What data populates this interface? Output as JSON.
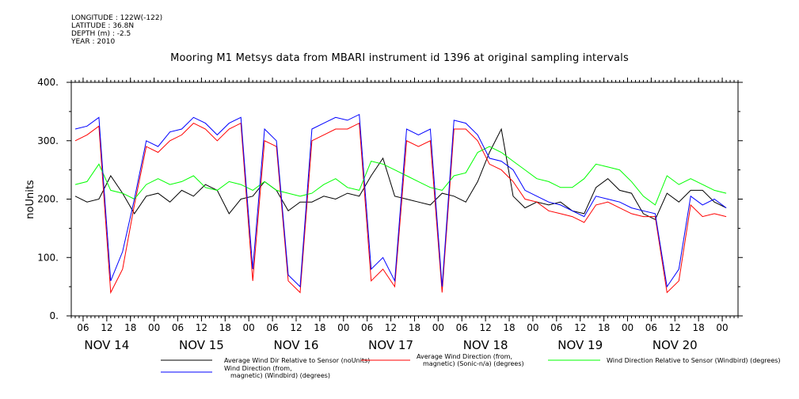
{
  "header": {
    "longitude": "LONGITUDE : 122W(-122)",
    "latitude": "LATITUDE : 36.8N",
    "depth": "DEPTH (m) : -2.5",
    "year": "YEAR : 2010"
  },
  "chart_data": {
    "type": "line",
    "title": "Mooring M1 Metsys data from MBARI instrument id 1396 at original sampling intervals",
    "ylabel": "noUnits",
    "xlabel": "",
    "ylim": [
      0,
      400
    ],
    "yticks": [
      0,
      100,
      200,
      300,
      400
    ],
    "ytick_labels": [
      "0.",
      "100.",
      "200.",
      "300.",
      "400."
    ],
    "xlim_hours": [
      -21,
      148
    ],
    "hour_ticks": [
      {
        "h": -18,
        "label": "06"
      },
      {
        "h": -12,
        "label": "12"
      },
      {
        "h": -6,
        "label": "18"
      },
      {
        "h": 0,
        "label": "00"
      },
      {
        "h": 6,
        "label": "06"
      },
      {
        "h": 12,
        "label": "12"
      },
      {
        "h": 18,
        "label": "18"
      },
      {
        "h": 24,
        "label": "00"
      },
      {
        "h": 30,
        "label": "06"
      },
      {
        "h": 36,
        "label": "12"
      },
      {
        "h": 42,
        "label": "18"
      },
      {
        "h": 48,
        "label": "00"
      },
      {
        "h": 54,
        "label": "06"
      },
      {
        "h": 60,
        "label": "12"
      },
      {
        "h": 66,
        "label": "18"
      },
      {
        "h": 72,
        "label": "00"
      },
      {
        "h": 78,
        "label": "06"
      },
      {
        "h": 84,
        "label": "12"
      },
      {
        "h": 90,
        "label": "18"
      },
      {
        "h": 96,
        "label": "00"
      },
      {
        "h": 102,
        "label": "06"
      },
      {
        "h": 108,
        "label": "12"
      },
      {
        "h": 114,
        "label": "18"
      },
      {
        "h": 120,
        "label": "00"
      },
      {
        "h": 126,
        "label": "06"
      },
      {
        "h": 132,
        "label": "12"
      },
      {
        "h": 138,
        "label": "18"
      },
      {
        "h": 144,
        "label": "00"
      }
    ],
    "date_labels": [
      {
        "h": -12,
        "label": "NOV 14"
      },
      {
        "h": 12,
        "label": "NOV 15"
      },
      {
        "h": 36,
        "label": "NOV 16"
      },
      {
        "h": 60,
        "label": "NOV 17"
      },
      {
        "h": 84,
        "label": "NOV 18"
      },
      {
        "h": 108,
        "label": "NOV 19"
      },
      {
        "h": 132,
        "label": "NOV 20"
      }
    ],
    "grid": false,
    "legend_position": "bottom",
    "series": [
      {
        "name": "Average Wind Dir Relative to Sensor (noUnits)",
        "color": "#000000",
        "x": [
          -20,
          -17,
          -14,
          -11,
          -8,
          -5,
          -2,
          1,
          4,
          7,
          10,
          13,
          16,
          19,
          22,
          25,
          28,
          31,
          34,
          37,
          40,
          43,
          46,
          49,
          52,
          55,
          58,
          61,
          64,
          67,
          70,
          73,
          76,
          79,
          82,
          85,
          88,
          91,
          94,
          97,
          100,
          103,
          106,
          109,
          112,
          115,
          118,
          121,
          124,
          127,
          130,
          133,
          136,
          139,
          142,
          145
        ],
        "values": [
          205,
          195,
          200,
          240,
          210,
          175,
          205,
          210,
          195,
          215,
          205,
          225,
          215,
          175,
          200,
          205,
          230,
          215,
          180,
          195,
          195,
          205,
          200,
          210,
          205,
          240,
          270,
          205,
          200,
          195,
          190,
          210,
          205,
          195,
          230,
          280,
          320,
          205,
          185,
          195,
          190,
          195,
          180,
          175,
          220,
          235,
          215,
          210,
          175,
          165,
          210,
          195,
          215,
          215,
          195,
          185
        ]
      },
      {
        "name": "Average Wind Direction (from, magnetic) (Sonic-n/a) (degrees)",
        "color": "#ff0000",
        "x": [
          -20,
          -17,
          -14,
          -11,
          -8,
          -5,
          -2,
          1,
          4,
          7,
          10,
          13,
          16,
          19,
          22,
          25,
          28,
          31,
          34,
          37,
          40,
          43,
          46,
          49,
          52,
          55,
          58,
          61,
          64,
          67,
          70,
          73,
          76,
          79,
          82,
          85,
          88,
          91,
          94,
          97,
          100,
          103,
          106,
          109,
          112,
          115,
          118,
          121,
          124,
          127,
          130,
          133,
          136,
          139,
          142,
          145
        ],
        "values": [
          300,
          310,
          325,
          40,
          80,
          190,
          290,
          280,
          300,
          310,
          330,
          320,
          300,
          320,
          330,
          60,
          300,
          290,
          60,
          40,
          300,
          310,
          320,
          320,
          330,
          60,
          80,
          50,
          300,
          290,
          300,
          40,
          320,
          320,
          300,
          260,
          250,
          230,
          200,
          195,
          180,
          175,
          170,
          160,
          190,
          195,
          185,
          175,
          170,
          170,
          40,
          60,
          190,
          170,
          175,
          170
        ]
      },
      {
        "name": "Wind Direction Relative to Sensor (Windbird) (degrees)",
        "color": "#00ff00",
        "x": [
          -20,
          -17,
          -14,
          -11,
          -8,
          -5,
          -2,
          1,
          4,
          7,
          10,
          13,
          16,
          19,
          22,
          25,
          28,
          31,
          34,
          37,
          40,
          43,
          46,
          49,
          52,
          55,
          58,
          61,
          64,
          67,
          70,
          73,
          76,
          79,
          82,
          85,
          88,
          91,
          94,
          97,
          100,
          103,
          106,
          109,
          112,
          115,
          118,
          121,
          124,
          127,
          130,
          133,
          136,
          139,
          142,
          145
        ],
        "values": [
          225,
          230,
          260,
          215,
          210,
          200,
          225,
          235,
          225,
          230,
          240,
          220,
          215,
          230,
          225,
          215,
          230,
          215,
          210,
          205,
          210,
          225,
          235,
          220,
          215,
          265,
          260,
          250,
          240,
          230,
          220,
          215,
          240,
          245,
          280,
          290,
          280,
          265,
          250,
          235,
          230,
          220,
          220,
          235,
          260,
          255,
          250,
          230,
          205,
          190,
          240,
          225,
          235,
          225,
          215,
          210
        ]
      },
      {
        "name": "Wind Direction (from, magnetic) (Windbird) (degrees)",
        "color": "#0000ff",
        "x": [
          -20,
          -17,
          -14,
          -11,
          -8,
          -5,
          -2,
          1,
          4,
          7,
          10,
          13,
          16,
          19,
          22,
          25,
          28,
          31,
          34,
          37,
          40,
          43,
          46,
          49,
          52,
          55,
          58,
          61,
          64,
          67,
          70,
          73,
          76,
          79,
          82,
          85,
          88,
          91,
          94,
          97,
          100,
          103,
          106,
          109,
          112,
          115,
          118,
          121,
          124,
          127,
          130,
          133,
          136,
          139,
          142,
          145
        ],
        "values": [
          320,
          325,
          340,
          60,
          110,
          200,
          300,
          290,
          315,
          320,
          340,
          330,
          310,
          330,
          340,
          80,
          320,
          300,
          70,
          50,
          320,
          330,
          340,
          335,
          345,
          80,
          100,
          60,
          320,
          310,
          320,
          50,
          335,
          330,
          310,
          270,
          265,
          250,
          215,
          205,
          195,
          190,
          180,
          170,
          205,
          200,
          195,
          185,
          180,
          175,
          50,
          80,
          205,
          190,
          200,
          185
        ]
      }
    ]
  }
}
